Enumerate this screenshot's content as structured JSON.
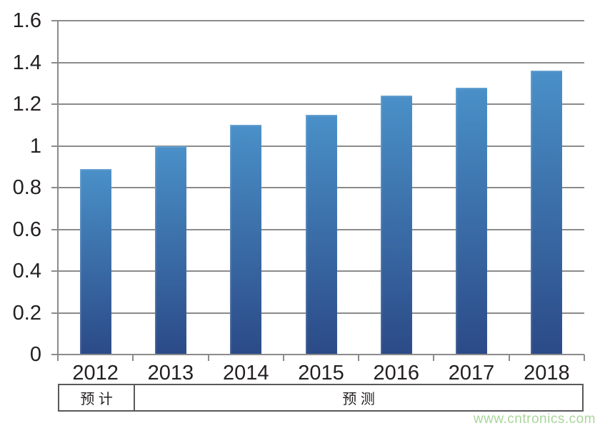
{
  "chart_data": {
    "type": "bar",
    "categories": [
      "2012",
      "2013",
      "2014",
      "2015",
      "2016",
      "2017",
      "2018"
    ],
    "values": [
      0.89,
      1.0,
      1.1,
      1.15,
      1.24,
      1.28,
      1.36
    ],
    "title": "",
    "xlabel": "",
    "ylabel": "",
    "ylim": [
      0,
      1.6
    ],
    "ytick_labels": [
      "0",
      "0.2",
      "0.4",
      "0.6",
      "0.8",
      "1",
      "1.2",
      "1.4",
      "1.6"
    ],
    "ytick_values": [
      0,
      0.2,
      0.4,
      0.6,
      0.8,
      1.0,
      1.2,
      1.4,
      1.6
    ],
    "grid": true,
    "legend": "none",
    "bar_color_top": "#4a90c8",
    "bar_color_bottom": "#2b4a87",
    "gridline_color": "#8b8b8b",
    "text_color": "#231f20"
  },
  "period_row": {
    "cells": [
      {
        "label": "预计",
        "span": 1
      },
      {
        "label": "预测",
        "span": 6
      }
    ],
    "border_color": "#59595b"
  },
  "watermark": {
    "text": "www.cntronics.com",
    "color": "#a9d69b"
  }
}
